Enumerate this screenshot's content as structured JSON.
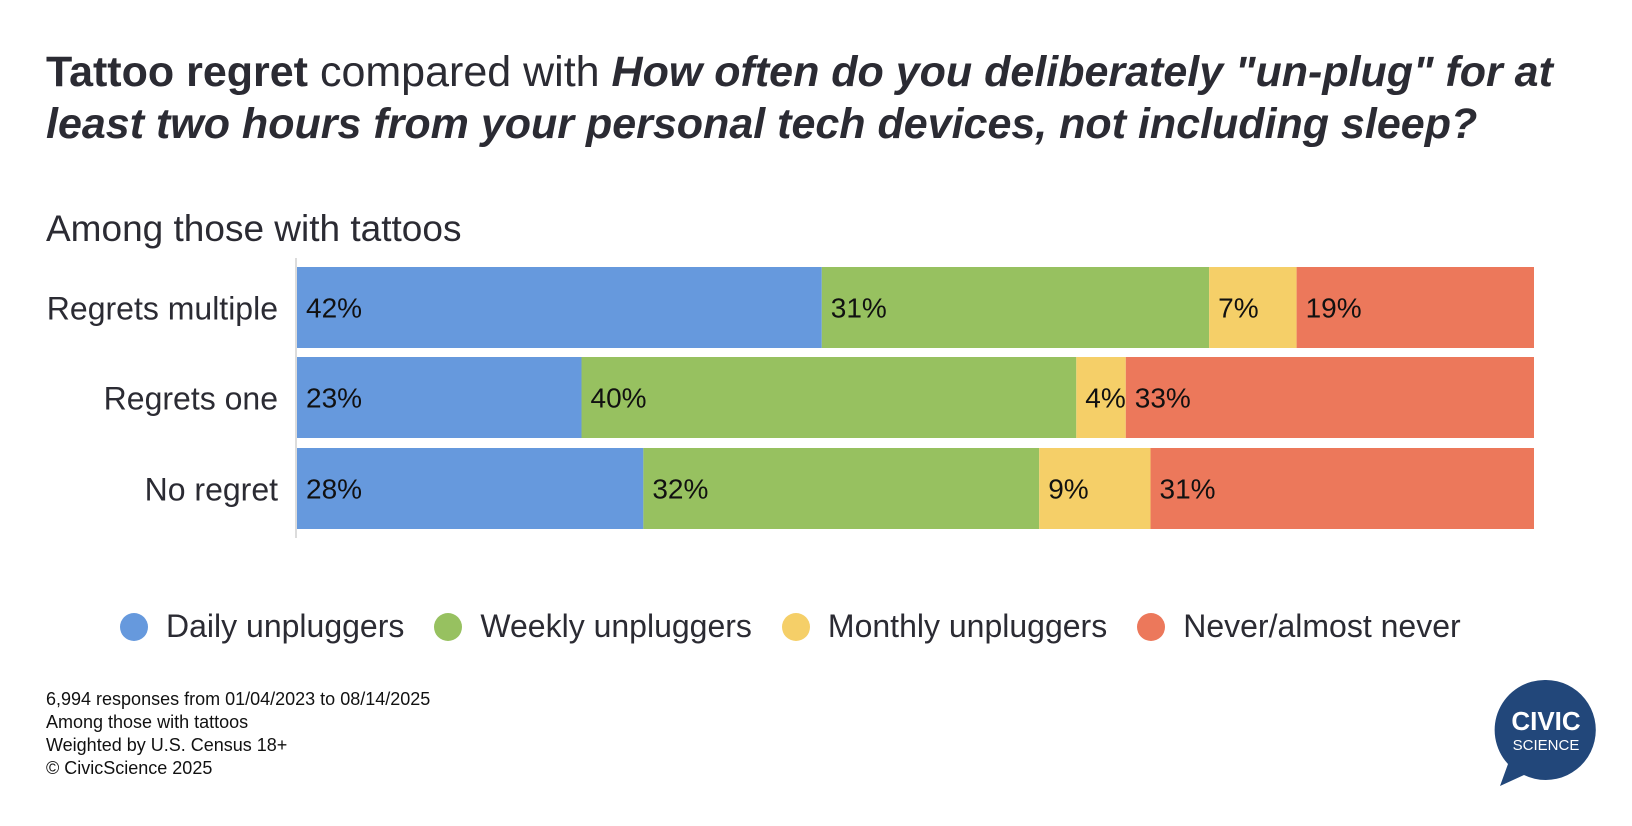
{
  "title": {
    "part1": "Tattoo regret",
    "part2": " compared with ",
    "part3": "How often do you deliberately \"un-plug\" for at least two hours from your personal tech devices, not including sleep?"
  },
  "subtitle": "Among those with tattoos",
  "chart_data": {
    "type": "bar",
    "orientation": "horizontal",
    "stacked": true,
    "normalized": true,
    "categories": [
      "Regrets multiple",
      "Regrets one",
      "No regret"
    ],
    "series": [
      {
        "name": "Daily unpluggers",
        "color": "#6699dd",
        "values": [
          42,
          23,
          28
        ]
      },
      {
        "name": "Weekly unpluggers",
        "color": "#97c160",
        "values": [
          31,
          40,
          32
        ]
      },
      {
        "name": "Monthly unpluggers",
        "color": "#f5cf68",
        "values": [
          7,
          4,
          9
        ]
      },
      {
        "name": "Never/almost never",
        "color": "#ec785b",
        "values": [
          19,
          33,
          31
        ]
      }
    ],
    "value_labels": [
      [
        "42%",
        "31%",
        "7%",
        "19%"
      ],
      [
        "23%",
        "40%",
        "4%",
        "33%"
      ],
      [
        "28%",
        "32%",
        "9%",
        "31%"
      ]
    ],
    "legend_position": "bottom",
    "grid": false
  },
  "footer": [
    "6,994 responses from 01/04/2023 to 08/14/2025",
    "Among those with tattoos",
    "Weighted by U.S. Census 18+",
    "© CivicScience 2025"
  ],
  "logo": {
    "line1": "CIVIC",
    "line2": "SCIENCE",
    "color": "#22477a"
  }
}
